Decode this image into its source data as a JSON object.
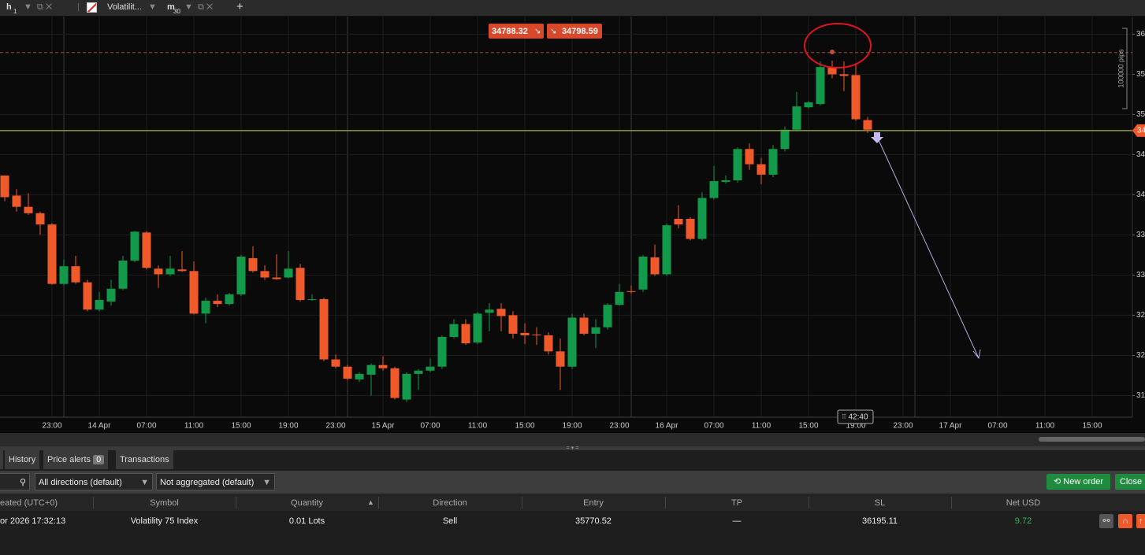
{
  "tabs": [
    {
      "label": "h",
      "sub": "1"
    },
    {
      "label": "Volatilit..."
    },
    {
      "label": "m",
      "sub": "30"
    }
  ],
  "chart_data": {
    "type": "candlestick",
    "open": [
      34240,
      33990,
      33850,
      33770,
      33630,
      32890,
      33110,
      32910,
      32570,
      32670,
      32830,
      33180,
      33530,
      33080,
      33010,
      33070,
      33050,
      32520,
      32680,
      32640,
      32760,
      33210,
      33050,
      32970,
      32970,
      33090,
      32690,
      32700,
      31950,
      31860,
      31700,
      31760,
      31880,
      31840,
      31450,
      31770,
      31810,
      31860,
      32230,
      32390,
      32160,
      32530,
      32580,
      32500,
      32280,
      32260,
      32250,
      32050,
      31860,
      32470,
      32270,
      32350,
      32630,
      32800,
      32820,
      33220,
      33010,
      33700,
      33700,
      33450,
      33960,
      34160,
      34180,
      34570,
      34380,
      34250,
      34570,
      34810,
      35090,
      35130,
      35590,
      35500,
      35490,
      34930
    ],
    "high": [
      34240,
      34070,
      34020,
      33790,
      33650,
      33190,
      33240,
      32940,
      32790,
      32940,
      33240,
      33550,
      33550,
      33120,
      33240,
      33300,
      33170,
      32720,
      32760,
      32780,
      33250,
      33360,
      33120,
      33260,
      33300,
      33140,
      32760,
      32720,
      32010,
      31880,
      31790,
      31900,
      31990,
      31860,
      31790,
      31830,
      31960,
      32250,
      32450,
      32450,
      32540,
      32650,
      32650,
      32550,
      32400,
      32350,
      32290,
      32210,
      32520,
      32520,
      32450,
      32650,
      32890,
      32870,
      33250,
      33380,
      33640,
      33870,
      33720,
      34030,
      34360,
      34240,
      34590,
      34640,
      34460,
      34620,
      34850,
      35280,
      35170,
      35660,
      35670,
      35660,
      35640,
      34970
    ],
    "low": [
      33920,
      33790,
      33750,
      33500,
      32880,
      32870,
      32890,
      32550,
      32550,
      32620,
      32810,
      33160,
      33070,
      32840,
      32990,
      33040,
      32510,
      32400,
      32600,
      32620,
      32740,
      33030,
      32940,
      32940,
      32960,
      32670,
      32680,
      31930,
      31840,
      31690,
      31670,
      31500,
      31810,
      31450,
      31420,
      31570,
      31790,
      31830,
      32210,
      32130,
      32140,
      32300,
      32300,
      32210,
      32140,
      32130,
      32010,
      31570,
      31830,
      32250,
      32090,
      32320,
      32620,
      32770,
      32790,
      32990,
      32990,
      33580,
      33430,
      33430,
      33940,
      34140,
      34150,
      34310,
      34130,
      34220,
      34540,
      34790,
      35070,
      35110,
      35450,
      35290,
      34920,
      34770
    ],
    "close": [
      33970,
      33850,
      33770,
      33630,
      32890,
      33110,
      32910,
      32570,
      32690,
      32830,
      33180,
      33540,
      33090,
      33010,
      33080,
      33050,
      32520,
      32680,
      32640,
      32760,
      33230,
      33050,
      32970,
      32950,
      33080,
      32690,
      32700,
      31950,
      31860,
      31710,
      31770,
      31880,
      31840,
      31470,
      31770,
      31810,
      31860,
      32230,
      32390,
      32150,
      32520,
      32570,
      32490,
      32270,
      32250,
      32250,
      32050,
      31860,
      32470,
      32270,
      32350,
      32630,
      32790,
      32790,
      33230,
      33010,
      33620,
      33630,
      33450,
      33960,
      34170,
      34180,
      34570,
      34380,
      34250,
      34570,
      34810,
      35100,
      35150,
      35590,
      35500,
      35480,
      34940,
      34810
    ],
    "up_color": "#129a4a",
    "down_color": "#f0592a",
    "xtick_labels": [
      "23:00",
      "14 Apr",
      "07:00",
      "11:00",
      "15:00",
      "19:00",
      "23:00",
      "15 Apr",
      "07:00",
      "11:00",
      "15:00",
      "19:00",
      "23:00",
      "16 Apr",
      "07:00",
      "11:00",
      "15:00",
      "19:00",
      "23:00",
      "17 Apr",
      "07:00",
      "11:00",
      "15:00"
    ],
    "ylim": [
      31230,
      36180
    ],
    "yticks": [
      {
        "value": 36000,
        "label": "36"
      },
      {
        "value": 35500,
        "label": "35"
      },
      {
        "value": 35000,
        "label": "35"
      },
      {
        "value": 34500,
        "label": "34"
      },
      {
        "value": 34000,
        "label": "34"
      },
      {
        "value": 33500,
        "label": "33"
      },
      {
        "value": 33000,
        "label": "33"
      },
      {
        "value": 32500,
        "label": "32"
      },
      {
        "value": 32000,
        "label": "32"
      },
      {
        "value": 31500,
        "label": "31"
      }
    ],
    "grid": true,
    "bid": "34788.32",
    "ask": "34798.59",
    "price_tag": "34",
    "scale_label": "100000 pips",
    "timer": "42:40"
  },
  "panel": {
    "tabs": [
      "History",
      "Price alerts",
      "Transactions"
    ],
    "alert_count": "0",
    "filters": [
      "All directions (default)",
      "Not aggregated (default)"
    ],
    "buttons": [
      "New order",
      "Close"
    ],
    "table": {
      "headers": [
        "eated (UTC+0)",
        "Symbol",
        "Quantity",
        "Direction",
        "Entry",
        "TP",
        "SL",
        "Net USD"
      ],
      "rows": [
        [
          "or 2026 17:32:13",
          "Volatility 75 Index",
          "0.01 Lots",
          "Sell",
          "35770.52",
          "—",
          "36195.11",
          "9.72"
        ]
      ]
    }
  }
}
